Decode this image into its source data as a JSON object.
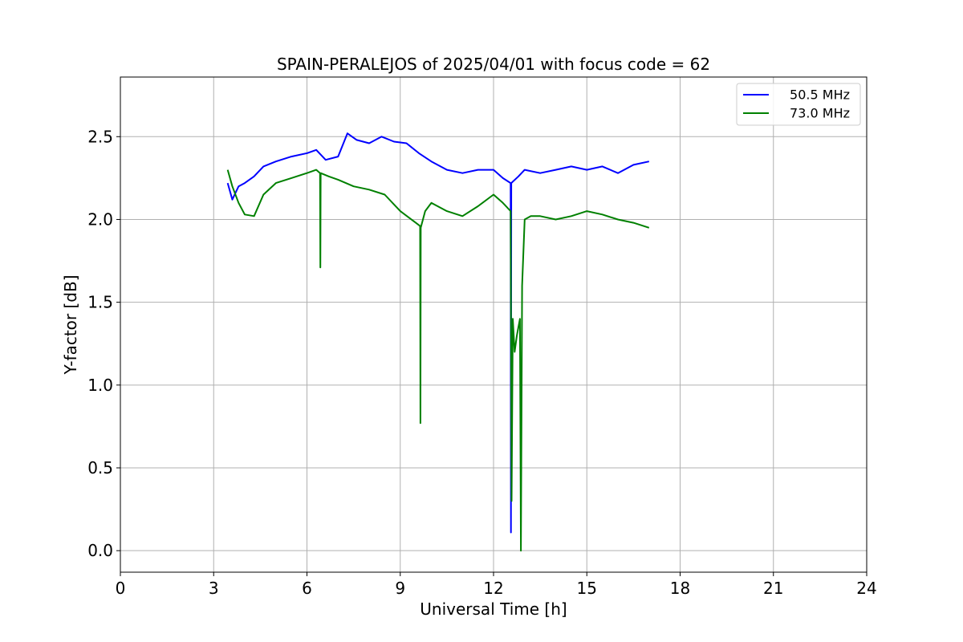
{
  "chart_data": {
    "type": "line",
    "title": "SPAIN-PERALEJOS of 2025/04/01 with focus code = 62",
    "xlabel": "Universal Time [h]",
    "ylabel": "Y-factor [dB]",
    "xlim": [
      0,
      24
    ],
    "ylim": [
      -0.13,
      2.86
    ],
    "xticks": [
      0,
      3,
      6,
      9,
      12,
      15,
      18,
      21,
      24
    ],
    "yticks": [
      0.0,
      0.5,
      1.0,
      1.5,
      2.0,
      2.5
    ],
    "xtick_labels": [
      "0",
      "3",
      "6",
      "9",
      "12",
      "15",
      "18",
      "21",
      "24"
    ],
    "ytick_labels": [
      "0.0",
      "0.5",
      "1.0",
      "1.5",
      "2.0",
      "2.5"
    ],
    "grid": true,
    "legend_position": "top-right",
    "series": [
      {
        "name": "50.5 MHz",
        "color": "#0000ff",
        "points": [
          [
            3.45,
            2.22
          ],
          [
            3.6,
            2.12
          ],
          [
            3.8,
            2.2
          ],
          [
            4.0,
            2.22
          ],
          [
            4.3,
            2.26
          ],
          [
            4.6,
            2.32
          ],
          [
            5.0,
            2.35
          ],
          [
            5.5,
            2.38
          ],
          [
            6.0,
            2.4
          ],
          [
            6.3,
            2.42
          ],
          [
            6.6,
            2.36
          ],
          [
            7.0,
            2.38
          ],
          [
            7.3,
            2.52
          ],
          [
            7.6,
            2.48
          ],
          [
            8.0,
            2.46
          ],
          [
            8.4,
            2.5
          ],
          [
            8.8,
            2.47
          ],
          [
            9.2,
            2.46
          ],
          [
            9.6,
            2.4
          ],
          [
            10.0,
            2.35
          ],
          [
            10.5,
            2.3
          ],
          [
            11.0,
            2.28
          ],
          [
            11.5,
            2.3
          ],
          [
            12.0,
            2.3
          ],
          [
            12.3,
            2.25
          ],
          [
            12.55,
            2.22
          ],
          [
            12.56,
            0.11
          ],
          [
            12.57,
            2.22
          ],
          [
            12.8,
            2.26
          ],
          [
            13.0,
            2.3
          ],
          [
            13.5,
            2.28
          ],
          [
            14.0,
            2.3
          ],
          [
            14.5,
            2.32
          ],
          [
            15.0,
            2.3
          ],
          [
            15.5,
            2.32
          ],
          [
            16.0,
            2.28
          ],
          [
            16.5,
            2.33
          ],
          [
            17.0,
            2.35
          ]
        ]
      },
      {
        "name": "73.0 MHz",
        "color": "#008000",
        "points": [
          [
            3.45,
            2.3
          ],
          [
            3.6,
            2.2
          ],
          [
            3.8,
            2.1
          ],
          [
            4.0,
            2.03
          ],
          [
            4.3,
            2.02
          ],
          [
            4.6,
            2.15
          ],
          [
            5.0,
            2.22
          ],
          [
            5.5,
            2.25
          ],
          [
            6.0,
            2.28
          ],
          [
            6.3,
            2.3
          ],
          [
            6.42,
            2.28
          ],
          [
            6.43,
            1.71
          ],
          [
            6.44,
            2.28
          ],
          [
            6.7,
            2.26
          ],
          [
            7.0,
            2.24
          ],
          [
            7.5,
            2.2
          ],
          [
            8.0,
            2.18
          ],
          [
            8.5,
            2.15
          ],
          [
            9.0,
            2.05
          ],
          [
            9.5,
            1.98
          ],
          [
            9.64,
            1.96
          ],
          [
            9.65,
            0.77
          ],
          [
            9.66,
            1.95
          ],
          [
            9.8,
            2.05
          ],
          [
            10.0,
            2.1
          ],
          [
            10.5,
            2.05
          ],
          [
            11.0,
            2.02
          ],
          [
            11.5,
            2.08
          ],
          [
            12.0,
            2.15
          ],
          [
            12.3,
            2.1
          ],
          [
            12.55,
            2.05
          ],
          [
            12.58,
            0.3
          ],
          [
            12.62,
            1.4
          ],
          [
            12.68,
            1.2
          ],
          [
            12.75,
            1.3
          ],
          [
            12.85,
            1.4
          ],
          [
            12.88,
            0.0
          ],
          [
            12.92,
            1.6
          ],
          [
            13.0,
            2.0
          ],
          [
            13.2,
            2.02
          ],
          [
            13.5,
            2.02
          ],
          [
            14.0,
            2.0
          ],
          [
            14.5,
            2.02
          ],
          [
            15.0,
            2.05
          ],
          [
            15.5,
            2.03
          ],
          [
            16.0,
            2.0
          ],
          [
            16.5,
            1.98
          ],
          [
            17.0,
            1.95
          ]
        ]
      }
    ]
  }
}
